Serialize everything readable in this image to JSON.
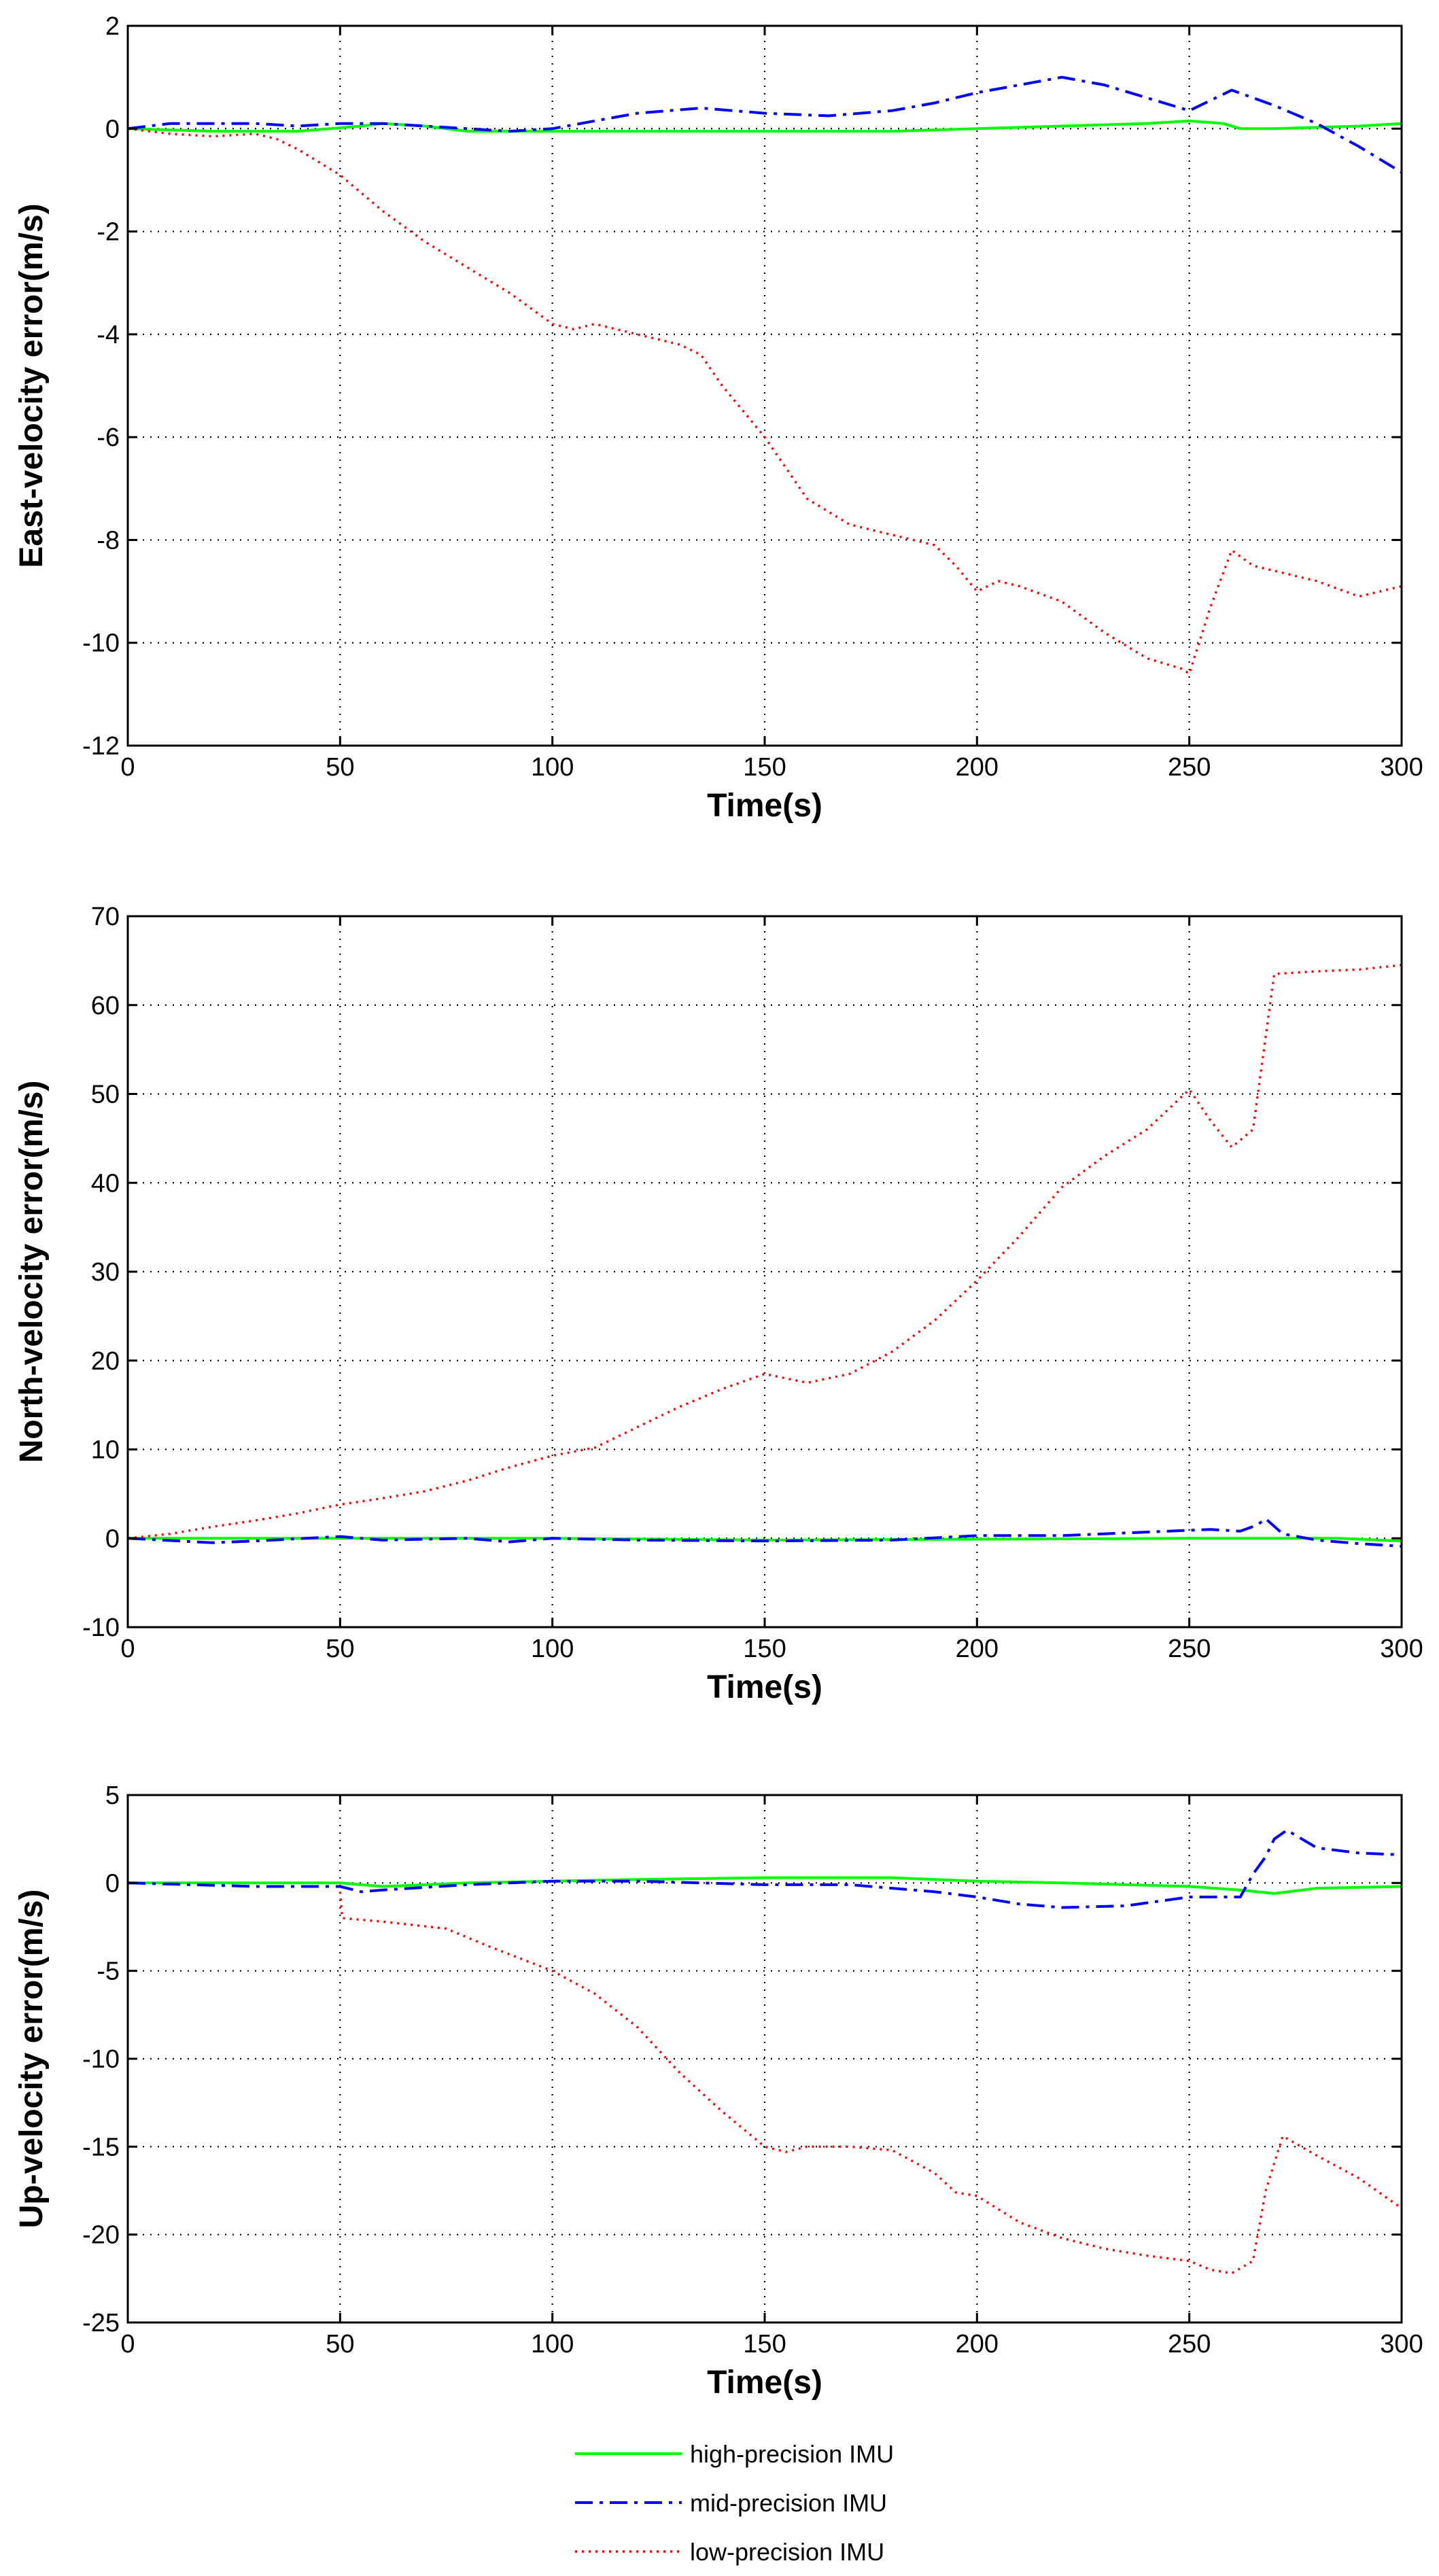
{
  "chart_data": [
    {
      "type": "line",
      "xlabel": "Time(s)",
      "ylabel": "East-velocity error(m/s)",
      "xlim": [
        0,
        300
      ],
      "ylim": [
        -12,
        2
      ],
      "xticks": [
        0,
        50,
        100,
        150,
        200,
        250,
        300
      ],
      "yticks": [
        -12,
        -10,
        -8,
        -6,
        -4,
        -2,
        0,
        2
      ],
      "grid": true,
      "series": [
        {
          "name": "high-precision IMU",
          "color": "#00ff00",
          "style": "solid",
          "x": [
            0,
            20,
            40,
            55,
            60,
            70,
            80,
            100,
            120,
            150,
            180,
            200,
            220,
            240,
            250,
            258,
            262,
            270,
            290,
            300
          ],
          "y": [
            0,
            -0.05,
            -0.05,
            0.05,
            0.1,
            0.05,
            -0.05,
            -0.05,
            -0.05,
            -0.05,
            -0.05,
            0,
            0.05,
            0.1,
            0.15,
            0.1,
            0,
            0,
            0.05,
            0.1
          ]
        },
        {
          "name": "mid-precision IMU",
          "color": "#0000ff",
          "style": "dashdot",
          "x": [
            0,
            10,
            20,
            30,
            40,
            50,
            60,
            70,
            80,
            90,
            100,
            110,
            120,
            135,
            150,
            165,
            180,
            190,
            200,
            210,
            220,
            230,
            240,
            250,
            260,
            270,
            280,
            290,
            300
          ],
          "y": [
            0,
            0.1,
            0.1,
            0.1,
            0.05,
            0.1,
            0.1,
            0.05,
            0,
            -0.05,
            0,
            0.15,
            0.3,
            0.4,
            0.3,
            0.25,
            0.35,
            0.5,
            0.7,
            0.85,
            1.0,
            0.85,
            0.6,
            0.35,
            0.75,
            0.45,
            0.1,
            -0.35,
            -0.85
          ]
        },
        {
          "name": "low-precision IMU",
          "color": "#ff0000",
          "style": "dotted",
          "x": [
            0,
            10,
            20,
            30,
            35,
            40,
            50,
            60,
            70,
            80,
            90,
            100,
            105,
            110,
            115,
            120,
            130,
            135,
            140,
            150,
            160,
            170,
            180,
            190,
            195,
            200,
            205,
            210,
            220,
            230,
            240,
            248,
            250,
            255,
            260,
            265,
            270,
            280,
            290,
            300
          ],
          "y": [
            0,
            -0.1,
            -0.15,
            -0.1,
            -0.2,
            -0.4,
            -0.9,
            -1.6,
            -2.2,
            -2.7,
            -3.2,
            -3.8,
            -3.9,
            -3.8,
            -3.9,
            -4.0,
            -4.2,
            -4.4,
            -5.0,
            -6.0,
            -7.2,
            -7.7,
            -7.9,
            -8.1,
            -8.5,
            -9.0,
            -8.8,
            -8.9,
            -9.2,
            -9.8,
            -10.3,
            -10.5,
            -10.6,
            -9.3,
            -8.2,
            -8.5,
            -8.6,
            -8.8,
            -9.1,
            -8.9
          ]
        }
      ]
    },
    {
      "type": "line",
      "xlabel": "Time(s)",
      "ylabel": "North-velocity error(m/s)",
      "xlim": [
        0,
        300
      ],
      "ylim": [
        -10,
        70
      ],
      "xticks": [
        0,
        50,
        100,
        150,
        200,
        250,
        300
      ],
      "yticks": [
        -10,
        0,
        10,
        20,
        30,
        40,
        50,
        60,
        70
      ],
      "grid": true,
      "series": [
        {
          "name": "high-precision IMU",
          "color": "#00ff00",
          "style": "solid",
          "x": [
            0,
            50,
            100,
            150,
            200,
            250,
            270,
            285,
            300
          ],
          "y": [
            0,
            0,
            0,
            -0.2,
            -0.1,
            0,
            0,
            0,
            -0.3
          ]
        },
        {
          "name": "mid-precision IMU",
          "color": "#0000ff",
          "style": "dashdot",
          "x": [
            0,
            20,
            30,
            50,
            60,
            80,
            90,
            100,
            120,
            150,
            180,
            200,
            220,
            240,
            255,
            262,
            266,
            268,
            272,
            280,
            290,
            300
          ],
          "y": [
            0,
            -0.5,
            -0.3,
            0.2,
            -0.2,
            0,
            -0.4,
            0,
            -0.2,
            -0.3,
            -0.2,
            0.3,
            0.3,
            0.7,
            1.0,
            0.8,
            1.5,
            2.2,
            0.5,
            -0.2,
            -0.6,
            -0.9
          ]
        },
        {
          "name": "low-precision IMU",
          "color": "#ff0000",
          "style": "dotted",
          "x": [
            0,
            10,
            20,
            30,
            40,
            50,
            60,
            70,
            80,
            90,
            100,
            110,
            120,
            130,
            140,
            150,
            160,
            170,
            180,
            190,
            200,
            210,
            220,
            230,
            240,
            250,
            255,
            260,
            265,
            270,
            280,
            290,
            300
          ],
          "y": [
            0,
            0.5,
            1.3,
            2.0,
            2.8,
            3.8,
            4.5,
            5.3,
            6.5,
            8.0,
            9.3,
            10.2,
            12.5,
            14.8,
            16.8,
            18.5,
            17.5,
            18.5,
            21.0,
            24.5,
            29.0,
            34.0,
            39.5,
            43.0,
            46.0,
            50.5,
            47.0,
            44.0,
            46.0,
            63.5,
            63.8,
            64.0,
            64.5
          ]
        }
      ]
    },
    {
      "type": "line",
      "xlabel": "Time(s)",
      "ylabel": "Up-velocity error(m/s)",
      "xlim": [
        0,
        300
      ],
      "ylim": [
        -25,
        5
      ],
      "xticks": [
        0,
        50,
        100,
        150,
        200,
        250,
        300
      ],
      "yticks": [
        -25,
        -20,
        -15,
        -10,
        -5,
        0,
        5
      ],
      "grid": true,
      "series": [
        {
          "name": "high-precision IMU",
          "color": "#00ff00",
          "style": "solid",
          "x": [
            0,
            50,
            60,
            80,
            100,
            120,
            150,
            180,
            190,
            200,
            220,
            250,
            262,
            270,
            280,
            300
          ],
          "y": [
            0,
            0,
            -0.2,
            0,
            0.1,
            0.2,
            0.3,
            0.3,
            0.2,
            0.1,
            0,
            -0.2,
            -0.4,
            -0.6,
            -0.3,
            -0.2
          ]
        },
        {
          "name": "mid-precision IMU",
          "color": "#0000ff",
          "style": "dashdot",
          "x": [
            0,
            30,
            50,
            55,
            60,
            80,
            100,
            120,
            150,
            170,
            180,
            190,
            200,
            210,
            220,
            235,
            250,
            262,
            265,
            268,
            270,
            273,
            280,
            290,
            300
          ],
          "y": [
            0,
            -0.2,
            -0.2,
            -0.5,
            -0.4,
            -0.1,
            0.1,
            0.1,
            -0.1,
            -0.1,
            -0.3,
            -0.5,
            -0.8,
            -1.2,
            -1.4,
            -1.3,
            -0.8,
            -0.8,
            0.5,
            1.5,
            2.5,
            3.0,
            2.0,
            1.7,
            1.6
          ]
        },
        {
          "name": "low-precision IMU",
          "color": "#ff0000",
          "style": "dotted",
          "x": [
            50,
            50.5,
            60,
            75,
            85,
            100,
            110,
            120,
            130,
            140,
            150,
            155,
            160,
            170,
            180,
            190,
            195,
            200,
            210,
            220,
            230,
            240,
            250,
            255,
            260,
            265,
            268,
            272,
            280,
            290,
            300
          ],
          "y": [
            -0.5,
            -2.0,
            -2.2,
            -2.6,
            -3.6,
            -5.0,
            -6.3,
            -8.2,
            -10.8,
            -13.0,
            -15.0,
            -15.3,
            -15.0,
            -15.0,
            -15.2,
            -16.5,
            -17.6,
            -17.8,
            -19.3,
            -20.2,
            -20.8,
            -21.2,
            -21.5,
            -22.0,
            -22.2,
            -21.5,
            -17.5,
            -14.4,
            -15.5,
            -16.8,
            -18.5
          ]
        }
      ]
    }
  ],
  "legend": {
    "position": "bottom-center",
    "entries": [
      {
        "label": "high-precision IMU",
        "color": "#00ff00",
        "style": "solid"
      },
      {
        "label": "mid-precision IMU",
        "color": "#0000ff",
        "style": "dashdot"
      },
      {
        "label": "low-precision IMU",
        "color": "#ff0000",
        "style": "dotted"
      }
    ]
  }
}
